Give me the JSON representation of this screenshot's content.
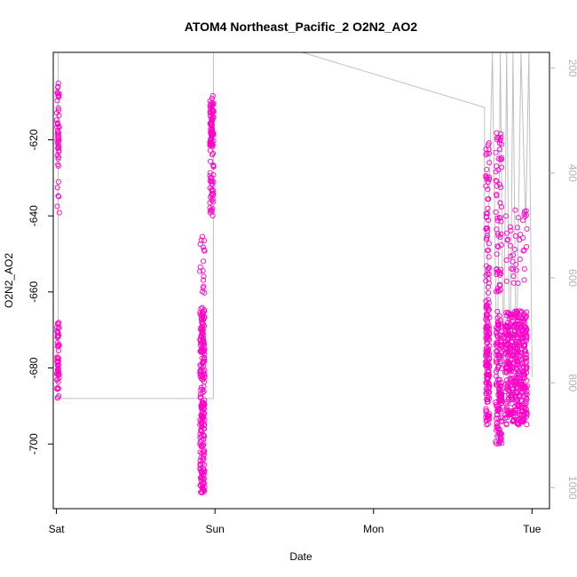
{
  "chart_data": {
    "type": "scatter",
    "title": "ATOM4 Northeast_Pacific_2 O2N2_AO2",
    "xlabel": "Date",
    "ylabel": "O2N2_AO2",
    "xlim": [
      -0.02,
      3.11
    ],
    "ylim": [
      -717,
      -597
    ],
    "x_ticks": [
      {
        "value": 0,
        "label": "Sat"
      },
      {
        "value": 1,
        "label": "Sun"
      },
      {
        "value": 2,
        "label": "Mon"
      },
      {
        "value": 3,
        "label": "Tue"
      }
    ],
    "y_ticks": [
      -700,
      -680,
      -660,
      -640,
      -620
    ],
    "secondary_ylim": [
      1040,
      170
    ],
    "secondary_y_ticks": [
      200,
      400,
      600,
      800,
      1000
    ],
    "point_color": "#ff00c8",
    "line_color": "#c0c0c0",
    "clusters": [
      {
        "x_center": 0.01,
        "x_spread": 0.008,
        "segments": [
          {
            "y": [
              -627,
              -605
            ],
            "n": 45
          },
          {
            "y": [
              -650,
              -628
            ],
            "n": 6
          },
          {
            "y": [
              -688,
              -668
            ],
            "n": 55
          }
        ]
      },
      {
        "x_center": 0.92,
        "x_spread": 0.015,
        "segments": [
          {
            "y": [
              -713,
              -665
            ],
            "n": 230
          },
          {
            "y": [
              -665,
              -643
            ],
            "n": 20
          }
        ]
      },
      {
        "x_center": 0.98,
        "x_spread": 0.012,
        "segments": [
          {
            "y": [
              -640,
              -607
            ],
            "n": 70
          },
          {
            "y": [
              -622,
              -610
            ],
            "n": 40
          }
        ]
      },
      {
        "x_center": 2.72,
        "x_spread": 0.012,
        "segments": [
          {
            "y": [
              -695,
              -665
            ],
            "n": 120
          },
          {
            "y": [
              -665,
              -620
            ],
            "n": 60
          }
        ]
      },
      {
        "x_center": 2.79,
        "x_spread": 0.02,
        "segments": [
          {
            "y": [
              -700,
              -665
            ],
            "n": 140
          },
          {
            "y": [
              -660,
              -618
            ],
            "n": 60
          }
        ]
      },
      {
        "x_center": 2.9,
        "x_spread": 0.07,
        "segments": [
          {
            "y": [
              -695,
              -665
            ],
            "n": 420
          },
          {
            "y": [
              -660,
              -638
            ],
            "n": 40
          }
        ]
      }
    ],
    "secondary_line": [
      [
        0.01,
        170
      ],
      [
        0.01,
        830
      ],
      [
        0.99,
        830
      ],
      [
        0.99,
        170
      ],
      [
        0.92,
        170
      ],
      [
        1.55,
        170
      ],
      [
        2.7,
        275
      ],
      [
        2.7,
        830
      ],
      [
        2.75,
        170
      ],
      [
        2.78,
        830
      ],
      [
        2.8,
        170
      ],
      [
        2.82,
        790
      ],
      [
        2.84,
        170
      ],
      [
        2.86,
        830
      ],
      [
        2.88,
        170
      ],
      [
        2.9,
        790
      ],
      [
        2.93,
        170
      ],
      [
        2.96,
        500
      ],
      [
        2.98,
        170
      ],
      [
        3.0,
        790
      ]
    ]
  }
}
